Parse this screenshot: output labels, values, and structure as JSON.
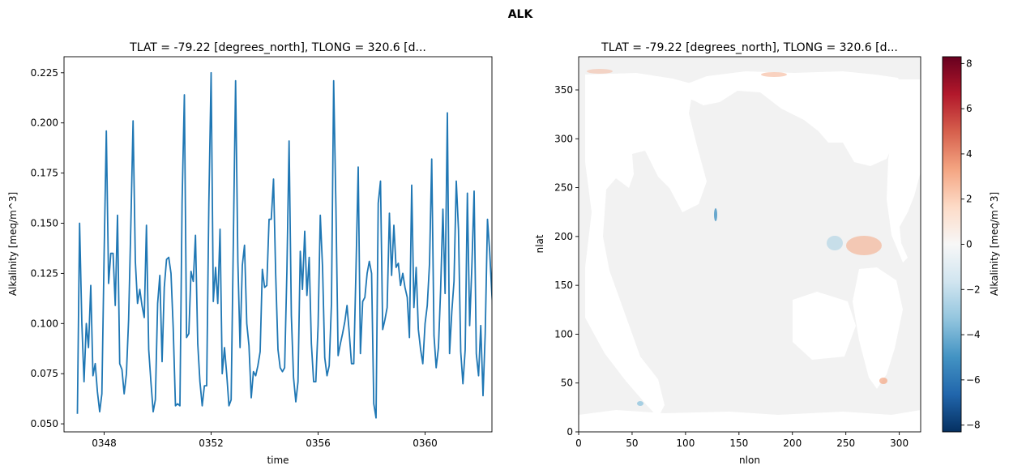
{
  "figure": {
    "title": "ALK"
  },
  "chart_data": [
    {
      "type": "line",
      "title": "TLAT = -79.22 [degrees_north], TLONG = 320.6 [d...",
      "xlabel": "time",
      "ylabel": "Alkalinity [meq/m^3]",
      "x_ticks": [
        {
          "value": 348,
          "label": "0348"
        },
        {
          "value": 352,
          "label": "0352"
        },
        {
          "value": 356,
          "label": "0356"
        },
        {
          "value": 360,
          "label": "0360"
        }
      ],
      "y_ticks": [
        0.05,
        0.075,
        0.1,
        0.125,
        0.15,
        0.175,
        0.2,
        0.225
      ],
      "xlim": [
        346.5,
        362.5
      ],
      "ylim": [
        0.046,
        0.233
      ],
      "grid": false,
      "line_color": "#1f77b4",
      "series": [
        {
          "x_start": 347.0,
          "x_step": 0.083333,
          "values": [
            0.055,
            0.15,
            0.1,
            0.071,
            0.1,
            0.088,
            0.119,
            0.074,
            0.08,
            0.066,
            0.056,
            0.065,
            0.135,
            0.196,
            0.12,
            0.135,
            0.135,
            0.109,
            0.154,
            0.08,
            0.077,
            0.065,
            0.075,
            0.102,
            0.15,
            0.201,
            0.131,
            0.11,
            0.117,
            0.109,
            0.103,
            0.149,
            0.087,
            0.071,
            0.056,
            0.062,
            0.11,
            0.124,
            0.081,
            0.118,
            0.132,
            0.133,
            0.125,
            0.098,
            0.059,
            0.06,
            0.059,
            0.161,
            0.214,
            0.093,
            0.095,
            0.126,
            0.121,
            0.144,
            0.09,
            0.071,
            0.059,
            0.069,
            0.069,
            0.16,
            0.225,
            0.111,
            0.128,
            0.11,
            0.147,
            0.075,
            0.088,
            0.075,
            0.059,
            0.062,
            0.143,
            0.221,
            0.131,
            0.088,
            0.129,
            0.139,
            0.1,
            0.089,
            0.063,
            0.076,
            0.074,
            0.079,
            0.086,
            0.127,
            0.118,
            0.119,
            0.152,
            0.152,
            0.172,
            0.124,
            0.087,
            0.078,
            0.076,
            0.078,
            0.126,
            0.191,
            0.104,
            0.073,
            0.061,
            0.071,
            0.136,
            0.117,
            0.146,
            0.114,
            0.133,
            0.09,
            0.071,
            0.071,
            0.099,
            0.154,
            0.128,
            0.083,
            0.074,
            0.079,
            0.11,
            0.221,
            0.158,
            0.084,
            0.09,
            0.095,
            0.101,
            0.109,
            0.095,
            0.08,
            0.08,
            0.126,
            0.178,
            0.085,
            0.111,
            0.113,
            0.125,
            0.131,
            0.125,
            0.06,
            0.053,
            0.16,
            0.171,
            0.097,
            0.102,
            0.108,
            0.155,
            0.124,
            0.149,
            0.128,
            0.13,
            0.119,
            0.125,
            0.118,
            0.113,
            0.093,
            0.169,
            0.108,
            0.128,
            0.097,
            0.087,
            0.08,
            0.1,
            0.109,
            0.13,
            0.182,
            0.094,
            0.078,
            0.088,
            0.117,
            0.157,
            0.115,
            0.205,
            0.085,
            0.106,
            0.121,
            0.171,
            0.147,
            0.086,
            0.07,
            0.087,
            0.165,
            0.099,
            0.128,
            0.166,
            0.085,
            0.074,
            0.099,
            0.064,
            0.095,
            0.152,
            0.136,
            0.114,
            0.098,
            0.074,
            0.103,
            0.172,
            0.123,
            0.082,
            0.137,
            0.099,
            0.08,
            0.121,
            0.099,
            0.084,
            0.066,
            0.083,
            0.122,
            0.109,
            0.079,
            0.106,
            0.125,
            0.123,
            0.085,
            0.068,
            0.063,
            0.066
          ]
        }
      ]
    },
    {
      "type": "heatmap",
      "title": "TLAT = -79.22 [degrees_north], TLONG = 320.6 [d...",
      "xlabel": "nlon",
      "ylabel": "nlat",
      "x_ticks": [
        0,
        50,
        100,
        150,
        200,
        250,
        300
      ],
      "y_ticks": [
        0,
        50,
        100,
        150,
        200,
        250,
        300,
        350
      ],
      "xlim": [
        0,
        320
      ],
      "ylim": [
        0,
        384
      ],
      "colormap": "RdBu_r",
      "colorbar": {
        "label": "Alkalinity [meq/m^3]",
        "range": [
          -8.3,
          8.3
        ],
        "ticks": [
          -8,
          -6,
          -4,
          -2,
          0,
          2,
          4,
          6,
          8
        ]
      },
      "land_color": "#ffffff",
      "ocean_color": "#f2f2f2"
    }
  ]
}
